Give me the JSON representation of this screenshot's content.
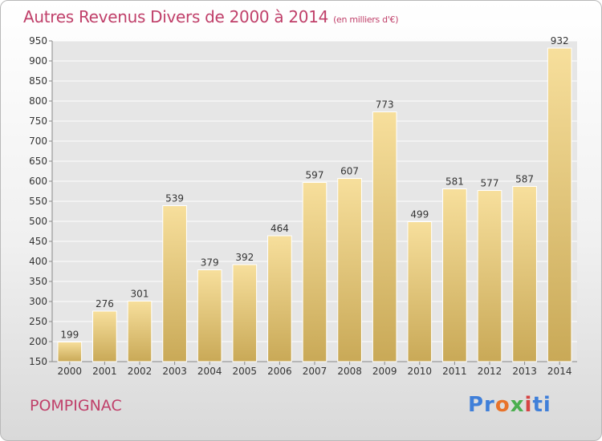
{
  "header": {
    "title": "Autres Revenus Divers de 2000 à 2014",
    "unit": "(en milliers d'€)"
  },
  "footer": {
    "city": "POMPIGNAC",
    "logo": "Proxiti"
  },
  "colors": {
    "title": "#c0406a",
    "bar_top": "#f7df9c",
    "bar_bottom": "#c9a957"
  },
  "chart_data": {
    "type": "bar",
    "title": "Autres Revenus Divers de 2000 à 2014",
    "subtitle": "(en milliers d'€)",
    "categories": [
      "2000",
      "2001",
      "2002",
      "2003",
      "2004",
      "2005",
      "2006",
      "2007",
      "2008",
      "2009",
      "2010",
      "2011",
      "2012",
      "2013",
      "2014"
    ],
    "values": [
      199,
      276,
      301,
      539,
      379,
      392,
      464,
      597,
      607,
      773,
      499,
      581,
      577,
      587,
      932
    ],
    "ylim": [
      150,
      950
    ],
    "yticks": [
      150,
      200,
      250,
      300,
      350,
      400,
      450,
      500,
      550,
      600,
      650,
      700,
      750,
      800,
      850,
      900,
      950
    ],
    "grid": true
  }
}
